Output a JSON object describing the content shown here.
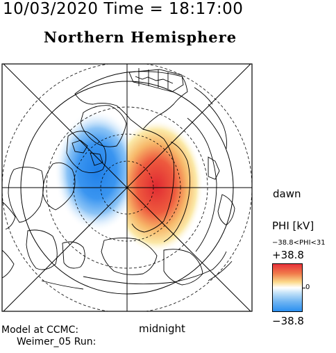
{
  "header": {
    "timestamp": "10/03/2020 Time = 18:17:00",
    "title": "Northern Hemisphere"
  },
  "map": {
    "top_label": "",
    "right_label": "dawn",
    "bottom_label": "midnight",
    "colors": {
      "positive": "#e8323a",
      "negative": "#2b8ff0",
      "zero": "#ffffff",
      "frame": "#000000"
    }
  },
  "colorbar": {
    "title": "PHI [kV]",
    "range_text": "−38.8<PHI<31",
    "max_label": "+38.8",
    "mid_label": "0",
    "min_label": "−38.8",
    "max_value": 38.8,
    "min_value": -38.8
  },
  "footer": {
    "model_line1": "Model at CCMC:",
    "model_line2": "Weimer_05 Run:"
  }
}
